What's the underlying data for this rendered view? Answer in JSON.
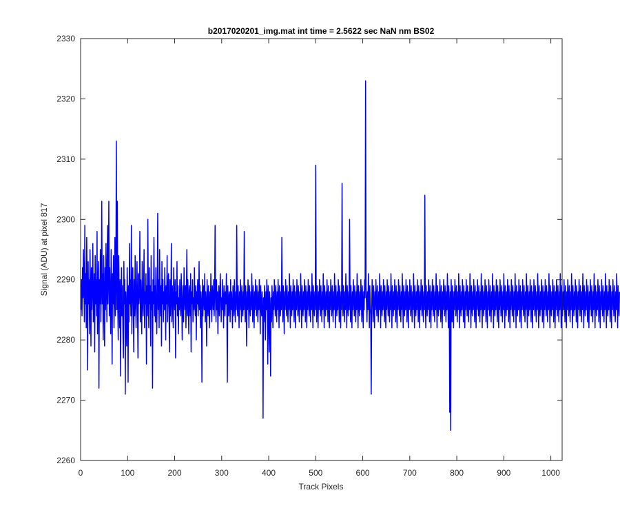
{
  "chart_data": {
    "type": "line",
    "title": "b2017020201_img.mat int time = 2.5622 sec  NaN nm BS02",
    "xlabel": "Track Pixels",
    "ylabel": "Signal (ADU) at pixel 817",
    "xlim": [
      0,
      1024
    ],
    "ylim": [
      2260,
      2330
    ],
    "xticks": [
      0,
      100,
      200,
      300,
      400,
      500,
      600,
      700,
      800,
      900,
      1000
    ],
    "yticks": [
      2260,
      2270,
      2280,
      2290,
      2300,
      2310,
      2320,
      2330
    ],
    "grid": false,
    "legend": "none",
    "series": [
      {
        "color": "#0000ff",
        "x_start": 1,
        "x_step": 1,
        "y": [
          2285,
          2290,
          2284,
          2292,
          2287,
          2295,
          2289,
          2283,
          2299,
          2286,
          2291,
          2282,
          2297,
          2288,
          2275,
          2293,
          2286,
          2290,
          2281,
          2295,
          2288,
          2279,
          2292,
          2285,
          2289,
          2296,
          2283,
          2287,
          2291,
          2278,
          2294,
          2286,
          2290,
          2284,
          2298,
          2281,
          2289,
          2293,
          2272,
          2290,
          2286,
          2295,
          2283,
          2289,
          2303,
          2286,
          2291,
          2280,
          2294,
          2287,
          2279,
          2292,
          2285,
          2296,
          2289,
          2283,
          2299,
          2286,
          2290,
          2303,
          2284,
          2292,
          2287,
          2281,
          2295,
          2289,
          2276,
          2291,
          2286,
          2294,
          2282,
          2288,
          2297,
          2284,
          2290,
          2313,
          2285,
          2303,
          2286,
          2280,
          2294,
          2288,
          2282,
          2290,
          2274,
          2287,
          2292,
          2284,
          2289,
          2281,
          2277,
          2293,
          2286,
          2290,
          2271,
          2288,
          2285,
          2279,
          2292,
          2287,
          2273,
          2289,
          2283,
          2296,
          2286,
          2290,
          2284,
          2299,
          2281,
          2288,
          2292,
          2286,
          2278,
          2290,
          2284,
          2294,
          2287,
          2282,
          2289,
          2293,
          2285,
          2277,
          2291,
          2286,
          2288,
          2298,
          2283,
          2290,
          2286,
          2281,
          2293,
          2287,
          2284,
          2289,
          2295,
          2282,
          2288,
          2286,
          2291,
          2276,
          2289,
          2284,
          2300,
          2287,
          2282,
          2292,
          2286,
          2289,
          2279,
          2294,
          2285,
          2288,
          2272,
          2290,
          2286,
          2297,
          2284,
          2289,
          2283,
          2292,
          2286,
          2281,
          2288,
          2301,
          2285,
          2290,
          2282,
          2295,
          2287,
          2284,
          2289,
          2279,
          2293,
          2286,
          2290,
          2283,
          2288,
          2285,
          2292,
          2287,
          2280,
          2289,
          2286,
          2294,
          2283,
          2288,
          2291,
          2285,
          2278,
          2290,
          2284,
          2287,
          2296,
          2283,
          2289,
          2286,
          2282,
          2292,
          2287,
          2285,
          2290,
          2277,
          2288,
          2286,
          2293,
          2284,
          2289,
          2281,
          2287,
          2285,
          2290,
          2286,
          2284,
          2291,
          2288,
          2280,
          2286,
          2289,
          2283,
          2292,
          2287,
          2285,
          2289,
          2282,
          2288,
          2295,
          2284,
          2290,
          2286,
          2281,
          2289,
          2287,
          2284,
          2291,
          2278,
          2288,
          2286,
          2290,
          2283,
          2287,
          2285,
          2292,
          2286,
          2284,
          2289,
          2280,
          2288,
          2286,
          2290,
          2284,
          2287,
          2293,
          2285,
          2289,
          2282,
          2288,
          2286,
          2273,
          2290,
          2284,
          2287,
          2289,
          2285,
          2291,
          2283,
          2288,
          2286,
          2279,
          2290,
          2287,
          2284,
          2289,
          2286,
          2282,
          2288,
          2285,
          2291,
          2286,
          2283,
          2289,
          2287,
          2285,
          2290,
          2284,
          2288,
          2299,
          2286,
          2283,
          2290,
          2285,
          2288,
          2281,
          2287,
          2289,
          2284,
          2286,
          2291,
          2288,
          2283,
          2287,
          2285,
          2290,
          2286,
          2282,
          2289,
          2287,
          2284,
          2288,
          2286,
          2291,
          2285,
          2273,
          2289,
          2286,
          2284,
          2288,
          2287,
          2283,
          2290,
          2285,
          2288,
          2286,
          2282,
          2289,
          2287,
          2284,
          2290,
          2286,
          2283,
          2288,
          2285,
          2299,
          2287,
          2284,
          2289,
          2286,
          2282,
          2288,
          2285,
          2290,
          2287,
          2283,
          2289,
          2286,
          2284,
          2288,
          2285,
          2298,
          2287,
          2283,
          2289,
          2286,
          2279,
          2288,
          2285,
          2290,
          2287,
          2282,
          2289,
          2286,
          2284,
          2288,
          2285,
          2291,
          2287,
          2283,
          2289,
          2286,
          2282,
          2288,
          2285,
          2290,
          2287,
          2284,
          2289,
          2286,
          2283,
          2288,
          2285,
          2290,
          2287,
          2281,
          2289,
          2286,
          2284,
          2288,
          2285,
          2267,
          2287,
          2283,
          2289,
          2286,
          2280,
          2288,
          2285,
          2290,
          2287,
          2276,
          2289,
          2286,
          2278,
          2288,
          2285,
          2274,
          2287,
          2283,
          2289,
          2286,
          2282,
          2288,
          2285,
          2290,
          2287,
          2284,
          2289,
          2286,
          2283,
          2288,
          2285,
          2290,
          2287,
          2282,
          2289,
          2286,
          2284,
          2288,
          2285,
          2297,
          2287,
          2283,
          2289,
          2286,
          2281,
          2288,
          2285,
          2290,
          2287,
          2284,
          2289,
          2286,
          2283,
          2288,
          2285,
          2291,
          2287,
          2282,
          2289,
          2286,
          2284,
          2288,
          2285,
          2290,
          2287,
          2283,
          2289,
          2286,
          2282,
          2288,
          2285,
          2290,
          2287,
          2284,
          2289,
          2286,
          2283,
          2288,
          2285,
          2291,
          2287,
          2282,
          2289,
          2286,
          2284,
          2288,
          2285,
          2290,
          2287,
          2283,
          2289,
          2286,
          2282,
          2288,
          2285,
          2290,
          2287,
          2284,
          2289,
          2286,
          2283,
          2288,
          2285,
          2291,
          2287,
          2282,
          2289,
          2286,
          2284,
          2288,
          2285,
          2309,
          2287,
          2283,
          2289,
          2286,
          2282,
          2288,
          2285,
          2290,
          2287,
          2284,
          2289,
          2286,
          2283,
          2288,
          2285,
          2291,
          2287,
          2282,
          2289,
          2286,
          2284,
          2288,
          2285,
          2290,
          2287,
          2283,
          2289,
          2286,
          2282,
          2288,
          2285,
          2290,
          2287,
          2284,
          2289,
          2286,
          2283,
          2288,
          2285,
          2291,
          2287,
          2282,
          2289,
          2286,
          2284,
          2288,
          2285,
          2290,
          2287,
          2283,
          2289,
          2286,
          2282,
          2288,
          2285,
          2306,
          2287,
          2284,
          2289,
          2286,
          2283,
          2288,
          2285,
          2291,
          2287,
          2282,
          2289,
          2286,
          2284,
          2288,
          2285,
          2300,
          2287,
          2283,
          2289,
          2286,
          2282,
          2288,
          2285,
          2290,
          2287,
          2284,
          2289,
          2286,
          2283,
          2288,
          2285,
          2291,
          2287,
          2282,
          2289,
          2286,
          2284,
          2288,
          2285,
          2290,
          2287,
          2283,
          2289,
          2286,
          2282,
          2288,
          2285,
          2290,
          2287,
          2323,
          2289,
          2286,
          2283,
          2288,
          2285,
          2291,
          2287,
          2282,
          2289,
          2286,
          2284,
          2271,
          2285,
          2290,
          2287,
          2283,
          2289,
          2286,
          2282,
          2288,
          2285,
          2290,
          2287,
          2284,
          2289,
          2286,
          2283,
          2288,
          2285,
          2291,
          2287,
          2282,
          2289,
          2286,
          2284,
          2288,
          2285,
          2290,
          2287,
          2283,
          2289,
          2286,
          2282,
          2288,
          2285,
          2290,
          2287,
          2284,
          2289,
          2286,
          2283,
          2288,
          2285,
          2291,
          2287,
          2282,
          2289,
          2286,
          2284,
          2288,
          2285,
          2290,
          2287,
          2283,
          2289,
          2286,
          2282,
          2288,
          2285,
          2290,
          2287,
          2284,
          2289,
          2286,
          2283,
          2288,
          2285,
          2291,
          2287,
          2282,
          2289,
          2286,
          2284,
          2288,
          2285,
          2290,
          2287,
          2283,
          2289,
          2286,
          2282,
          2288,
          2285,
          2290,
          2287,
          2284,
          2289,
          2286,
          2283,
          2288,
          2285,
          2291,
          2287,
          2282,
          2289,
          2286,
          2284,
          2288,
          2285,
          2290,
          2287,
          2283,
          2289,
          2286,
          2282,
          2288,
          2285,
          2290,
          2287,
          2284,
          2289,
          2286,
          2283,
          2288,
          2285,
          2304,
          2287,
          2282,
          2289,
          2286,
          2284,
          2288,
          2285,
          2290,
          2287,
          2283,
          2289,
          2286,
          2282,
          2288,
          2285,
          2290,
          2287,
          2284,
          2289,
          2286,
          2283,
          2288,
          2285,
          2291,
          2287,
          2282,
          2289,
          2286,
          2284,
          2288,
          2285,
          2290,
          2287,
          2283,
          2289,
          2286,
          2282,
          2288,
          2285,
          2290,
          2287,
          2284,
          2289,
          2286,
          2283,
          2288,
          2285,
          2291,
          2287,
          2282,
          2289,
          2286,
          2268,
          2288,
          2265,
          2290,
          2287,
          2283,
          2289,
          2286,
          2282,
          2288,
          2285,
          2290,
          2287,
          2284,
          2289,
          2286,
          2283,
          2288,
          2285,
          2291,
          2287,
          2282,
          2289,
          2286,
          2284,
          2288,
          2285,
          2290,
          2287,
          2283,
          2289,
          2286,
          2282,
          2288,
          2285,
          2290,
          2287,
          2284,
          2289,
          2286,
          2283,
          2288,
          2285,
          2291,
          2287,
          2282,
          2289,
          2286,
          2284,
          2288,
          2285,
          2290,
          2287,
          2283,
          2289,
          2286,
          2282,
          2288,
          2285,
          2290,
          2287,
          2284,
          2289,
          2286,
          2283,
          2288,
          2285,
          2291,
          2287,
          2282,
          2289,
          2286,
          2284,
          2288,
          2285,
          2290,
          2287,
          2283,
          2289,
          2286,
          2282,
          2288,
          2285,
          2290,
          2287,
          2284,
          2289,
          2286,
          2283,
          2288,
          2285,
          2291,
          2287,
          2282,
          2289,
          2286,
          2284,
          2288,
          2285,
          2290,
          2287,
          2283,
          2289,
          2286,
          2282,
          2288,
          2285,
          2290,
          2287,
          2284,
          2289,
          2286,
          2283,
          2288,
          2285,
          2291,
          2287,
          2282,
          2289,
          2286,
          2284,
          2288,
          2285,
          2290,
          2287,
          2283,
          2289,
          2286,
          2282,
          2288,
          2285,
          2290,
          2287,
          2284,
          2289,
          2286,
          2283,
          2288,
          2285,
          2291,
          2287,
          2282,
          2289,
          2286,
          2284,
          2288,
          2285,
          2290,
          2287,
          2283,
          2289,
          2286,
          2282,
          2288,
          2285,
          2290,
          2287,
          2284,
          2289,
          2286,
          2283,
          2288,
          2285,
          2291,
          2287,
          2282,
          2289,
          2286,
          2284,
          2288,
          2285,
          2290,
          2287,
          2283,
          2289,
          2286,
          2282,
          2288,
          2285,
          2290,
          2287,
          2284,
          2289,
          2286,
          2283,
          2288,
          2285,
          2291,
          2287,
          2282,
          2289,
          2286,
          2284,
          2288,
          2285,
          2290,
          2287,
          2283,
          2289,
          2286,
          2282,
          2288,
          2285,
          2290,
          2287,
          2284,
          2289,
          2286,
          2283,
          2288,
          2285,
          2291,
          2287,
          2282,
          2289,
          2286,
          2284,
          2288,
          2285,
          2290,
          2287,
          2283,
          2289,
          2286,
          2282,
          2288,
          2285,
          2290,
          2287,
          2284,
          2289,
          2286,
          2283,
          2288,
          2285,
          2291,
          2287,
          2282,
          2289,
          2286,
          2284,
          2288,
          2285,
          2290,
          2287,
          2283,
          2289,
          2286,
          2282,
          2288,
          2285,
          2290,
          2287,
          2284,
          2289,
          2286,
          2283,
          2288,
          2285,
          2291,
          2287,
          2282,
          2289,
          2286,
          2284,
          2288,
          2285,
          2290,
          2287,
          2283,
          2289,
          2286,
          2282,
          2288,
          2285,
          2290,
          2287,
          2284,
          2289,
          2286,
          2283,
          2288,
          2285,
          2291,
          2287,
          2282,
          2289,
          2286,
          2284,
          2288,
          2285,
          2290,
          2287,
          2283,
          2289,
          2286,
          2282,
          2288,
          2285,
          2290,
          2287,
          2284,
          2289,
          2286,
          2283,
          2288,
          2285,
          2291,
          2287,
          2282,
          2289,
          2286,
          2284,
          2288,
          2285,
          2290,
          2287,
          2283,
          2289,
          2286,
          2282,
          2288,
          2285,
          2290,
          2287,
          2284,
          2289,
          2286,
          2283,
          2288,
          2285,
          2291,
          2287,
          2282,
          2289,
          2286,
          2284,
          2288,
          2285,
          2290,
          2287,
          2283,
          2289,
          2286,
          2282,
          2288,
          2285,
          2290,
          2287,
          2284,
          2289,
          2286,
          2283,
          2288,
          2285,
          2291,
          2287,
          2282,
          2289,
          2286,
          2284,
          2288
        ]
      }
    ]
  }
}
